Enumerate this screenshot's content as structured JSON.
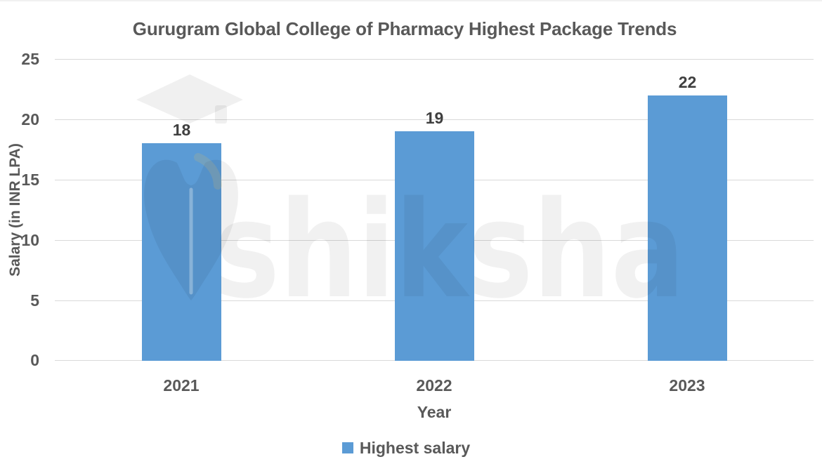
{
  "chart_data": {
    "type": "bar",
    "title": "Gurugram Global College of Pharmacy Highest Package Trends",
    "categories": [
      "2021",
      "2022",
      "2023"
    ],
    "series": [
      {
        "name": "Highest salary",
        "values": [
          18,
          19,
          22
        ]
      }
    ],
    "xlabel": "Year",
    "ylabel": "Salary (in INR LPA)",
    "ylim": [
      0,
      25
    ],
    "yticks": [
      0,
      5,
      10,
      15,
      20,
      25
    ],
    "grid": true,
    "legend_position": "bottom",
    "watermark": "shiksha"
  },
  "colors": {
    "bar": "#5b9bd5",
    "grid": "#d9d9d9",
    "title_text": "#595959",
    "tick_text": "#595959",
    "value_text": "#3f3f3f"
  }
}
